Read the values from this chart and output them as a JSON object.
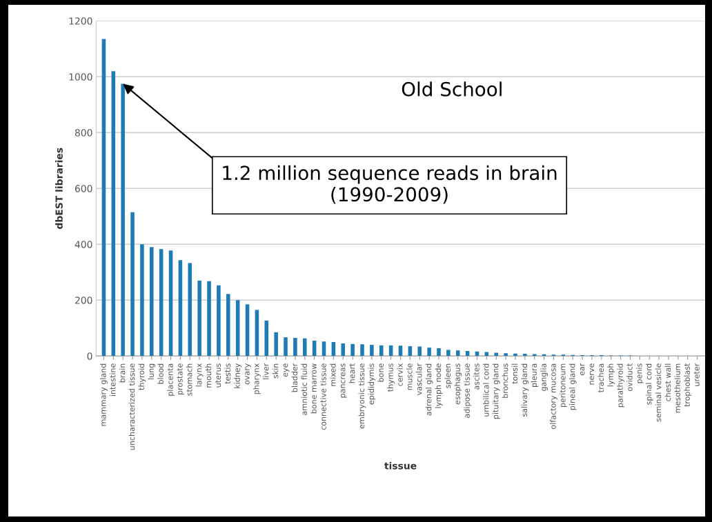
{
  "chart_data": {
    "type": "bar",
    "xlabel": "tissue",
    "ylabel": "dbEST libraries",
    "categories": [
      "mammary gland",
      "intestine",
      "brain",
      "uncharacterized tissue",
      "thyroid",
      "lung",
      "blood",
      "placenta",
      "prostate",
      "stomach",
      "larynx",
      "mouth",
      "uterus",
      "testis",
      "kidney",
      "ovary",
      "pharynx",
      "liver",
      "skin",
      "eye",
      "bladder",
      "amniotic fluid",
      "bone marrow",
      "connective tissue",
      "mixed",
      "pancreas",
      "heart",
      "embryonic tissue",
      "epididymis",
      "bone",
      "thymus",
      "cervix",
      "muscle",
      "vascular",
      "adrenal gland",
      "lymph node",
      "spleen",
      "esophagus",
      "adipose tissue",
      "ascites",
      "umbilical cord",
      "pituitary gland",
      "bronchus",
      "tonsil",
      "salivary gland",
      "pleura",
      "ganglia",
      "olfactory mucosa",
      "peritoneum",
      "pineal gland",
      "ear",
      "nerve",
      "trachea",
      "lymph",
      "parathyroid",
      "oviduct",
      "penis",
      "spinal cord",
      "seminal vesicle",
      "chest wall",
      "mesothelium",
      "trophoblast",
      "ureter"
    ],
    "values": [
      1135,
      1020,
      975,
      515,
      400,
      390,
      383,
      378,
      343,
      333,
      270,
      268,
      253,
      222,
      200,
      185,
      165,
      127,
      85,
      67,
      65,
      63,
      55,
      52,
      50,
      45,
      43,
      42,
      40,
      38,
      38,
      37,
      35,
      34,
      30,
      28,
      22,
      20,
      18,
      16,
      14,
      12,
      10,
      9,
      8,
      7,
      6,
      5,
      5,
      4,
      3,
      3,
      3,
      2,
      2,
      2,
      null,
      null,
      null,
      0,
      0,
      0,
      0
    ],
    "color": "#1f7bb6",
    "ylim": [
      0,
      1200
    ],
    "yticks": [
      0,
      200,
      400,
      600,
      800,
      1000,
      1200
    ],
    "grid": "y",
    "annotations": [
      "Old School",
      {
        "text": "1.2 million sequence reads in brain\n(1990-2009)",
        "x": "brain",
        "y": 975
      }
    ]
  }
}
